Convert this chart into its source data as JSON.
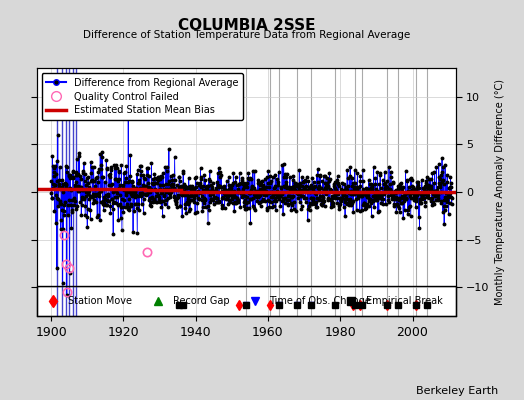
{
  "title": "COLUMBIA 2SSE",
  "subtitle": "Difference of Station Temperature Data from Regional Average",
  "ylabel": "Monthly Temperature Anomaly Difference (°C)",
  "watermark": "Berkeley Earth",
  "xlim": [
    1896,
    2012
  ],
  "ylim": [
    -13,
    13
  ],
  "yticks": [
    -10,
    -5,
    0,
    5,
    10
  ],
  "xticks": [
    1900,
    1920,
    1940,
    1960,
    1980,
    2000
  ],
  "fig_bg": "#d8d8d8",
  "plot_bg": "#ffffff",
  "data_line_color": "#0000ff",
  "data_dot_color": "#000000",
  "bias_color": "#cc0000",
  "qc_edge_color": "#ff69b4",
  "vline_color": "#aaaacc",
  "early_vline_color": "#6666ff",
  "station_moves": [
    1952.0,
    1960.5,
    1983.5,
    1985.5,
    1993.0,
    2001.0
  ],
  "record_gaps": [],
  "tobs_changes": [
    1954.0,
    1963.0,
    1968.0,
    1972.0
  ],
  "emp_breaks": [
    1935.5,
    1936.5,
    1954.0,
    1963.0,
    1968.0,
    1972.0,
    1978.5,
    1984.0,
    1986.0,
    1993.0,
    1996.0,
    2001.0,
    2004.0
  ],
  "gray_vlines": [
    1954.0,
    1960.5,
    1963.0,
    1968.0,
    1972.0,
    1978.5,
    1984.0,
    1986.0,
    1993.0,
    1996.0,
    2001.0,
    2004.0
  ],
  "bias_segments": [
    {
      "x_start": 1896,
      "x_end": 1926.0,
      "bias": 0.3
    },
    {
      "x_start": 1926.0,
      "x_end": 1936.0,
      "bias": 0.2
    },
    {
      "x_start": 1936.0,
      "x_end": 2012,
      "bias": -0.05
    }
  ],
  "spike_year": 1921.3,
  "spike_value": 11.5,
  "qc_points": [
    {
      "year": 1903.5,
      "value": -4.5
    },
    {
      "year": 1904.0,
      "value": -7.5
    },
    {
      "year": 1904.5,
      "value": -10.5
    },
    {
      "year": 1905.0,
      "value": -8.0
    },
    {
      "year": 1926.5,
      "value": -6.3
    }
  ],
  "early_blue_vlines": [
    1901.5,
    1903.0,
    1904.0,
    1905.0,
    1906.0,
    1907.0
  ]
}
